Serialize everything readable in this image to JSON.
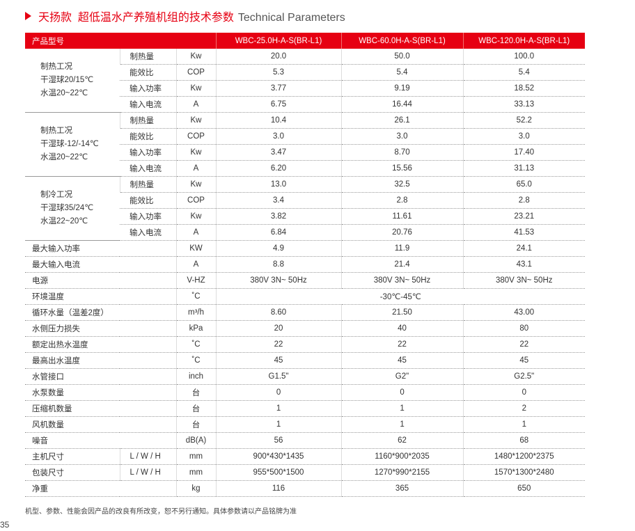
{
  "header": {
    "title_cn": "天扬款  超低温水产养殖机组的技术参数",
    "title_en": "Technical Parameters"
  },
  "table": {
    "header": [
      "产品型号",
      "WBC-25.0H-A-S(BR-L1)",
      "WBC-60.0H-A-S(BR-L1)",
      "WBC-120.0H-A-S(BR-L1)"
    ],
    "groups": [
      {
        "label": [
          "制热工况",
          "干湿球20/15℃",
          "水温20~22℃"
        ],
        "rows": [
          {
            "label": "制热量",
            "unit": "Kw",
            "values": [
              "20.0",
              "50.0",
              "100.0"
            ]
          },
          {
            "label": "能效比",
            "unit": "COP",
            "values": [
              "5.3",
              "5.4",
              "5.4"
            ]
          },
          {
            "label": "输入功率",
            "unit": "Kw",
            "values": [
              "3.77",
              "9.19",
              "18.52"
            ]
          },
          {
            "label": "输入电流",
            "unit": "A",
            "values": [
              "6.75",
              "16.44",
              "33.13"
            ]
          }
        ]
      },
      {
        "label": [
          "制热工况",
          "干湿球-12/-14℃",
          "水温20~22℃"
        ],
        "rows": [
          {
            "label": "制热量",
            "unit": "Kw",
            "values": [
              "10.4",
              "26.1",
              "52.2"
            ]
          },
          {
            "label": "能效比",
            "unit": "COP",
            "values": [
              "3.0",
              "3.0",
              "3.0"
            ]
          },
          {
            "label": "输入功率",
            "unit": "Kw",
            "values": [
              "3.47",
              "8.70",
              "17.40"
            ]
          },
          {
            "label": "输入电流",
            "unit": "A",
            "values": [
              "6.20",
              "15.56",
              "31.13"
            ]
          }
        ]
      },
      {
        "label": [
          "制冷工况",
          "干湿球35/24℃",
          "水温22~20℃"
        ],
        "rows": [
          {
            "label": "制热量",
            "unit": "Kw",
            "values": [
              "13.0",
              "32.5",
              "65.0"
            ]
          },
          {
            "label": "能效比",
            "unit": "COP",
            "values": [
              "3.4",
              "2.8",
              "2.8"
            ]
          },
          {
            "label": "输入功率",
            "unit": "Kw",
            "values": [
              "3.82",
              "11.61",
              "23.21"
            ]
          },
          {
            "label": "输入电流",
            "unit": "A",
            "values": [
              "6.84",
              "20.76",
              "41.53"
            ]
          }
        ]
      }
    ],
    "rows": [
      {
        "label": "最大输入功率",
        "unit": "KW",
        "values": [
          "4.9",
          "11.9",
          "24.1"
        ]
      },
      {
        "label": "最大输入电流",
        "unit": "A",
        "values": [
          "8.8",
          "21.4",
          "43.1"
        ]
      },
      {
        "label": "电源",
        "unit": "V-HZ",
        "values": [
          "380V 3N~ 50Hz",
          "380V 3N~ 50Hz",
          "380V 3N~ 50Hz"
        ]
      },
      {
        "label": "环境温度",
        "unit": "˚C",
        "values": [
          "-30℃-45℃"
        ]
      },
      {
        "label": "循环水量（温差2度）",
        "unit": "m³/h",
        "values": [
          "8.60",
          "21.50",
          "43.00"
        ]
      },
      {
        "label": "水侧压力损失",
        "unit": "kPa",
        "values": [
          "20",
          "40",
          "80"
        ]
      },
      {
        "label": "额定出热水温度",
        "unit": "˚C",
        "values": [
          "22",
          "22",
          "22"
        ]
      },
      {
        "label": "最高出水温度",
        "unit": "˚C",
        "values": [
          "45",
          "45",
          "45"
        ]
      },
      {
        "label": "水管接口",
        "unit": "inch",
        "values": [
          "G1.5\"",
          "G2\"",
          "G2.5\""
        ]
      },
      {
        "label": "水泵数量",
        "unit": "台",
        "values": [
          "0",
          "0",
          "0"
        ]
      },
      {
        "label": "压缩机数量",
        "unit": "台",
        "values": [
          "1",
          "1",
          "2"
        ]
      },
      {
        "label": "风机数量",
        "unit": "台",
        "values": [
          "1",
          "1",
          "1"
        ]
      },
      {
        "label": "噪音",
        "unit": "dB(A)",
        "values": [
          "56",
          "62",
          "68"
        ]
      },
      {
        "label": "主机尺寸",
        "sub": "L / W / H",
        "unit": "mm",
        "values": [
          "900*430*1435",
          "1160*900*2035",
          "1480*1200*2375"
        ]
      },
      {
        "label": "包装尺寸",
        "sub": "L / W / H",
        "unit": "mm",
        "values": [
          "955*500*1500",
          "1270*990*2155",
          "1570*1300*2480"
        ]
      },
      {
        "label": "净重",
        "unit": "kg",
        "values": [
          "116",
          "365",
          "650"
        ]
      }
    ]
  },
  "footnote": "机型、参数、性能会因产品的改良有所改变，恕不另行通知。具体参数请以产品铭牌为准",
  "page_number": "35"
}
